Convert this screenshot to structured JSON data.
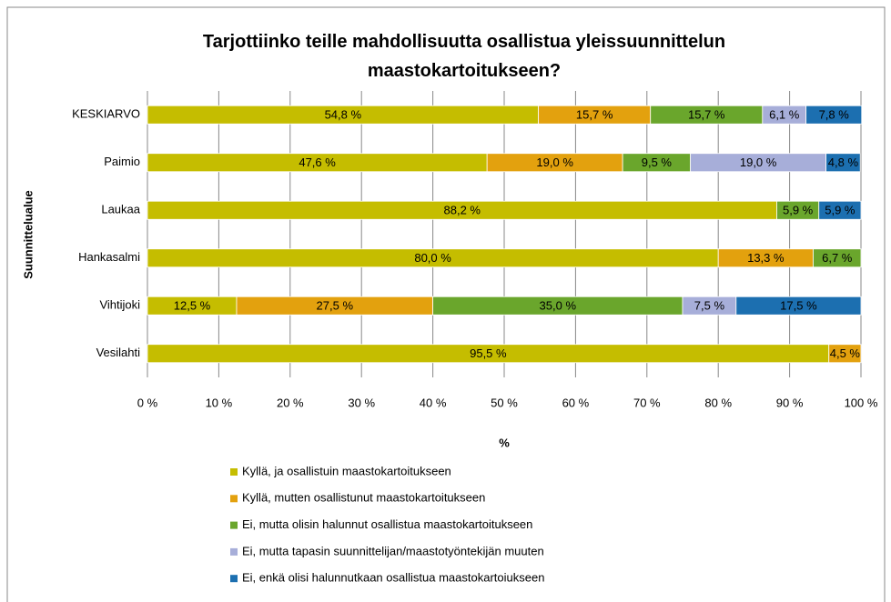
{
  "chart_data": {
    "type": "stacked_bar_horizontal",
    "title": "Tarjottiinko teille mahdollisuutta osallistua yleissuunnittelun maastokartoitukseen?",
    "x_label": "%",
    "y_label": "Suunnittelualue",
    "categories": [
      "KESKIARVO",
      "Paimio",
      "Laukaa",
      "Hankasalmi",
      "Vihtijoki",
      "Vesilahti"
    ],
    "series": [
      {
        "name": "Kyllä, ja osallistuin maastokartoitukseen",
        "color": "#c5bd00",
        "values": [
          54.8,
          47.6,
          88.2,
          80.0,
          12.5,
          95.5
        ],
        "value_labels": [
          "54,8 %",
          "47,6 %",
          "88,2 %",
          "80,0 %",
          "12,5 %",
          "95,5 %"
        ]
      },
      {
        "name": "Kyllä, mutten osallistunut maastokartoitukseen",
        "color": "#e3a10e",
        "values": [
          15.7,
          19.0,
          null,
          13.3,
          27.5,
          4.5
        ],
        "value_labels": [
          "15,7 %",
          "19,0 %",
          null,
          "13,3 %",
          "27,5 %",
          "4,5 %"
        ]
      },
      {
        "name": "Ei, mutta olisin halunnut osallistua maastokartoitukseen",
        "color": "#6aa62c",
        "values": [
          15.7,
          9.5,
          5.9,
          6.7,
          35.0,
          null
        ],
        "value_labels": [
          "15,7 %",
          "9,5 %",
          "5,9 %",
          "6,7 %",
          "35,0 %",
          null
        ]
      },
      {
        "name": "Ei, mutta tapasin suunnittelijan/maastotyöntekijän muuten",
        "color": "#a7aed9",
        "values": [
          6.1,
          19.0,
          null,
          null,
          7.5,
          null
        ],
        "value_labels": [
          "6,1 %",
          "19,0 %",
          null,
          null,
          "7,5 %",
          null
        ]
      },
      {
        "name": "Ei, enkä olisi halunnutkaan osallistua maastokartoiukseen",
        "color": "#1c6fb0",
        "values": [
          7.8,
          4.8,
          5.9,
          null,
          17.5,
          null
        ],
        "value_labels": [
          "7,8 %",
          "4,8 %",
          "5,9 %",
          null,
          "17,5 %",
          null
        ]
      }
    ],
    "xlim": [
      0,
      100
    ],
    "xticks": [
      {
        "value": 0,
        "label": "0 %"
      },
      {
        "value": 10,
        "label": "10 %"
      },
      {
        "value": 20,
        "label": "20 %"
      },
      {
        "value": 30,
        "label": "30 %"
      },
      {
        "value": 40,
        "label": "40 %"
      },
      {
        "value": 50,
        "label": "50 %"
      },
      {
        "value": 60,
        "label": "60 %"
      },
      {
        "value": 70,
        "label": "70 %"
      },
      {
        "value": 80,
        "label": "80 %"
      },
      {
        "value": 90,
        "label": "90 %"
      },
      {
        "value": 100,
        "label": "100 %"
      }
    ],
    "grid": true,
    "legend": "bottom"
  }
}
